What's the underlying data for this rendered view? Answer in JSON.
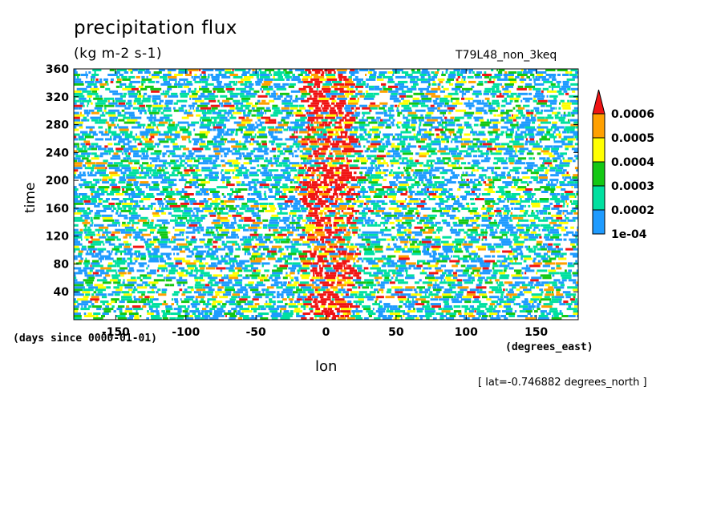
{
  "chart_data": {
    "type": "heatmap",
    "title": "precipitation flux",
    "units": "(kg m-2 s-1)",
    "run_label": "T79L48_non_3keq",
    "xlabel": "lon",
    "ylabel": "time",
    "x_units": "(degrees_east)",
    "y_units": "(days since 0000-01-01)",
    "slice_label": "[ lat=-0.746882 degrees_north ]",
    "xlim": [
      -180,
      180
    ],
    "ylim": [
      0,
      360
    ],
    "x_ticks": [
      -150,
      -100,
      -50,
      0,
      50,
      100,
      150
    ],
    "x_tick_labels": [
      "-150",
      "-100",
      "-50",
      "0",
      "50",
      "100",
      "150"
    ],
    "y_ticks": [
      40,
      80,
      120,
      160,
      200,
      240,
      280,
      320,
      360
    ],
    "y_tick_labels": [
      "40",
      "80",
      "120",
      "160",
      "200",
      "240",
      "280",
      "320",
      "360"
    ],
    "colorbar": {
      "levels": [
        "1e-04",
        "0.0002",
        "0.0003",
        "0.0004",
        "0.0005",
        "0.0006"
      ],
      "colors": [
        "#1e9bff",
        "#00e0a0",
        "#14c814",
        "#ffff00",
        "#ffa000",
        "#f01414"
      ]
    },
    "notes_data": {
      "max_band_center_lon": 0,
      "max_band_halfwidth_lon": 18
    }
  }
}
